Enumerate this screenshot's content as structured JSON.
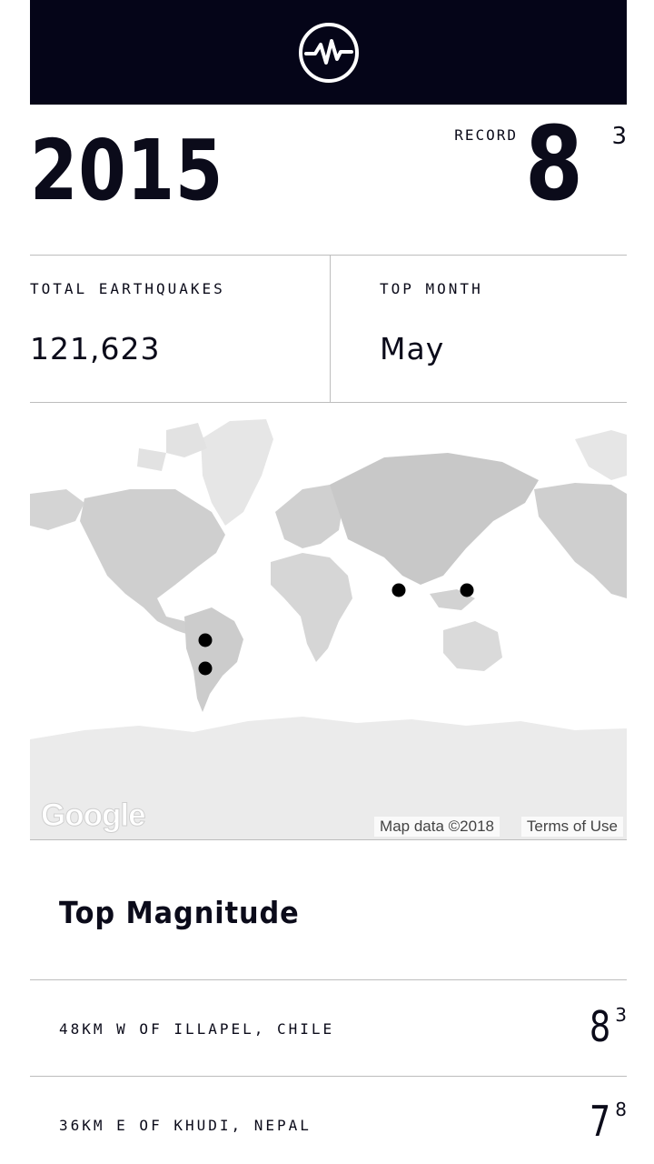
{
  "header": {
    "logo_icon": "seismograph-icon"
  },
  "summary": {
    "year": "2015",
    "record_label": "RECORD",
    "record_whole": "8",
    "record_decimal": "3"
  },
  "stats": {
    "total_label": "TOTAL EARTHQUAKES",
    "total_value": "121,623",
    "top_month_label": "TOP MONTH",
    "top_month_value": "May"
  },
  "map": {
    "logo_text": "Google",
    "attribution": "Map data ©2018",
    "terms_label": "Terms of Use"
  },
  "top_magnitude": {
    "title": "Top Magnitude",
    "items": [
      {
        "place": "48KM W OF ILLAPEL, CHILE",
        "whole": "8",
        "decimal": "3"
      },
      {
        "place": "36KM E OF KHUDI, NEPAL",
        "whole": "7",
        "decimal": "8"
      }
    ]
  },
  "colors": {
    "header_bg": "#050518",
    "text": "#0b0b1a",
    "divider": "#bdbdbd"
  }
}
